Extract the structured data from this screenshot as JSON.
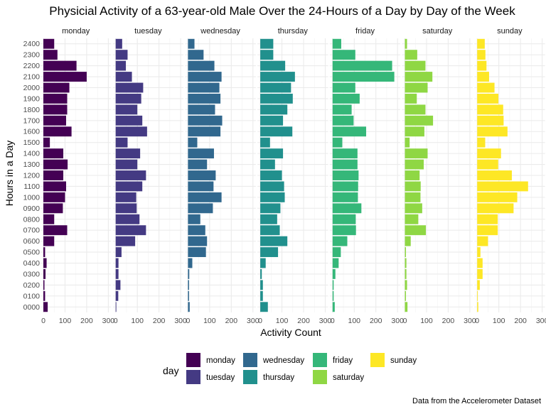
{
  "chart_data": {
    "type": "bar",
    "orientation": "horizontal",
    "title": "Physicial Activity of a 63-year-old Male Over the 24-Hours of a Day by Day of the Week",
    "xlabel": "Activity Count",
    "ylabel": "Hours in a Day",
    "caption": "Data from the Accelerometer Dataset",
    "xlim": [
      0,
      300
    ],
    "x_ticks": [
      0,
      100,
      200,
      300
    ],
    "grid": true,
    "legend_title": "day",
    "legend_position": "bottom",
    "categories": [
      "0000",
      "0100",
      "0200",
      "0300",
      "0400",
      "0500",
      "0600",
      "0700",
      "0800",
      "0900",
      "1000",
      "1100",
      "1200",
      "1300",
      "1400",
      "1500",
      "1600",
      "1700",
      "1800",
      "1900",
      "2000",
      "2100",
      "2200",
      "2300",
      "2400"
    ],
    "series": [
      {
        "name": "monday",
        "color": "#440154",
        "values": [
          20,
          8,
          5,
          10,
          15,
          8,
          50,
          110,
          50,
          90,
          100,
          105,
          92,
          112,
          92,
          30,
          130,
          105,
          110,
          110,
          120,
          200,
          153,
          65,
          50
        ]
      },
      {
        "name": "tuesday",
        "color": "#443A83",
        "values": [
          3,
          12,
          22,
          13,
          13,
          27,
          90,
          140,
          110,
          97,
          95,
          123,
          140,
          100,
          113,
          55,
          145,
          123,
          100,
          118,
          127,
          75,
          47,
          55,
          30
        ]
      },
      {
        "name": "wednesday",
        "color": "#31688E",
        "values": [
          8,
          5,
          5,
          6,
          20,
          83,
          88,
          80,
          57,
          115,
          155,
          118,
          128,
          88,
          120,
          43,
          150,
          158,
          125,
          150,
          145,
          155,
          122,
          72,
          30
        ]
      },
      {
        "name": "thursday",
        "color": "#21908D",
        "values": [
          35,
          12,
          12,
          7,
          25,
          82,
          125,
          90,
          78,
          93,
          113,
          110,
          100,
          68,
          105,
          45,
          148,
          105,
          125,
          150,
          142,
          160,
          115,
          60,
          60
        ]
      },
      {
        "name": "friday",
        "color": "#35B779",
        "values": [
          10,
          5,
          5,
          13,
          28,
          38,
          68,
          108,
          107,
          133,
          117,
          118,
          120,
          115,
          115,
          45,
          155,
          97,
          88,
          125,
          105,
          285,
          275,
          105,
          40
        ]
      },
      {
        "name": "saturday",
        "color": "#8FD744",
        "values": [
          12,
          5,
          10,
          7,
          7,
          5,
          27,
          97,
          62,
          80,
          72,
          73,
          68,
          87,
          105,
          22,
          90,
          130,
          95,
          55,
          105,
          127,
          95,
          57,
          10
        ]
      },
      {
        "name": "sunday",
        "color": "#FDE725",
        "values": [
          5,
          3,
          12,
          25,
          25,
          15,
          50,
          95,
          95,
          168,
          185,
          235,
          160,
          97,
          110,
          37,
          140,
          122,
          120,
          98,
          80,
          55,
          43,
          38,
          35
        ]
      }
    ]
  }
}
